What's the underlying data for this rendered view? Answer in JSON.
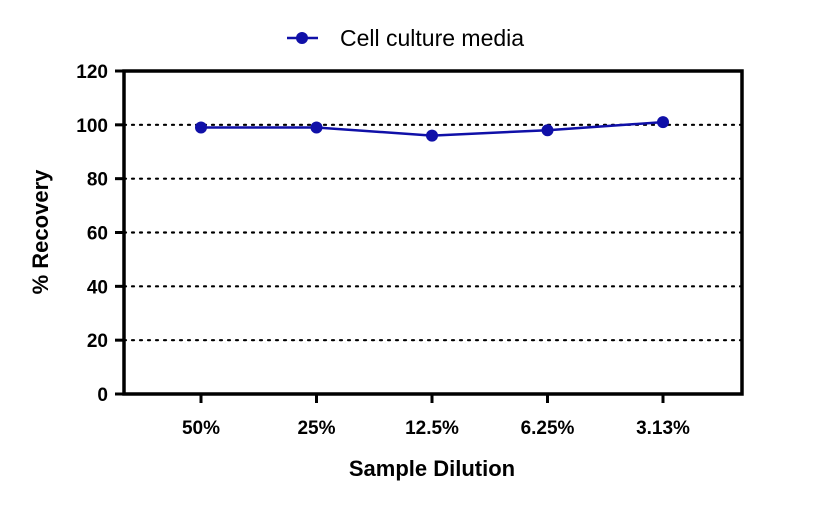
{
  "chart_data": {
    "type": "line",
    "categories": [
      "50%",
      "25%",
      "12.5%",
      "6.25%",
      "3.13%"
    ],
    "series": [
      {
        "name": "Cell culture media",
        "values": [
          99,
          99,
          96,
          98,
          101
        ],
        "color": "#1010a8"
      }
    ],
    "xlabel": "Sample Dilution",
    "ylabel": "% Recovery",
    "ylim": [
      0,
      120
    ],
    "yticks": [
      0,
      20,
      40,
      60,
      80,
      100,
      120
    ],
    "grid": "horizontal dotted",
    "legend_position": "top"
  }
}
